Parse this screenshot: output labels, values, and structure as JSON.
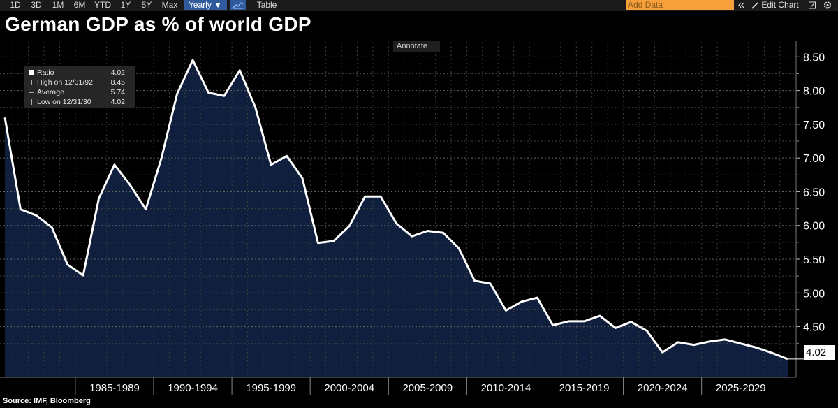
{
  "toolbar": {
    "ranges": [
      "1D",
      "3D",
      "1M",
      "6M",
      "YTD",
      "1Y",
      "5Y",
      "Max"
    ],
    "period": "Yearly ▼",
    "table": "Table",
    "add_data_placeholder": "Add Data",
    "nav_icon": "double-arrow-icon",
    "edit_chart": "Edit Chart",
    "edit_icon": "pencil-icon",
    "expand_icon": "expand-icon",
    "gear_icon": "gear-icon"
  },
  "title": "German GDP as % of world GDP",
  "annotate": "Annotate",
  "legend": {
    "ratio_label": "Ratio",
    "ratio_value": "4.02",
    "high_label": "High on 12/31/92",
    "high_value": "8.45",
    "avg_label": "Average",
    "avg_value": "5.74",
    "low_label": "Low on 12/31/30",
    "low_value": "4.02"
  },
  "last_value": "4.02",
  "source": "Source: IMF, Bloomberg",
  "colors": {
    "line": "#ffffff",
    "area": "#0f1f3d",
    "background": "#000000",
    "grid": "#666666",
    "accent": "#f5a03a"
  },
  "chart_data": {
    "type": "area",
    "title": "German GDP as % of world GDP",
    "x": [
      1980,
      1981,
      1982,
      1983,
      1984,
      1985,
      1986,
      1987,
      1988,
      1989,
      1990,
      1991,
      1992,
      1993,
      1994,
      1995,
      1996,
      1997,
      1998,
      1999,
      2000,
      2001,
      2002,
      2003,
      2004,
      2005,
      2006,
      2007,
      2008,
      2009,
      2010,
      2011,
      2012,
      2013,
      2014,
      2015,
      2016,
      2017,
      2018,
      2019,
      2020,
      2021,
      2022,
      2023,
      2024,
      2025,
      2026,
      2027,
      2028,
      2029,
      2030
    ],
    "series": [
      {
        "name": "Ratio",
        "values": [
          7.6,
          6.24,
          6.15,
          5.97,
          5.42,
          5.26,
          6.4,
          6.9,
          6.6,
          6.24,
          7.0,
          7.95,
          8.45,
          7.97,
          7.92,
          8.3,
          7.75,
          6.9,
          7.03,
          6.7,
          5.74,
          5.77,
          5.99,
          6.43,
          6.43,
          6.03,
          5.84,
          5.92,
          5.89,
          5.66,
          5.18,
          5.14,
          4.74,
          4.87,
          4.93,
          4.52,
          4.58,
          4.58,
          4.66,
          4.48,
          4.57,
          4.44,
          4.12,
          4.27,
          4.23,
          4.28,
          4.31,
          4.25,
          4.19,
          4.11,
          4.02
        ]
      }
    ],
    "xticks": [
      "1985-1989",
      "1990-1994",
      "1995-1999",
      "2000-2004",
      "2005-2009",
      "2010-2014",
      "2015-2019",
      "2020-2024",
      "2025-2029"
    ],
    "yticks": [
      "4.50",
      "5.00",
      "5.50",
      "6.00",
      "6.50",
      "7.00",
      "7.50",
      "8.00",
      "8.50"
    ],
    "ylim": [
      3.75,
      8.7
    ],
    "grid": true
  }
}
